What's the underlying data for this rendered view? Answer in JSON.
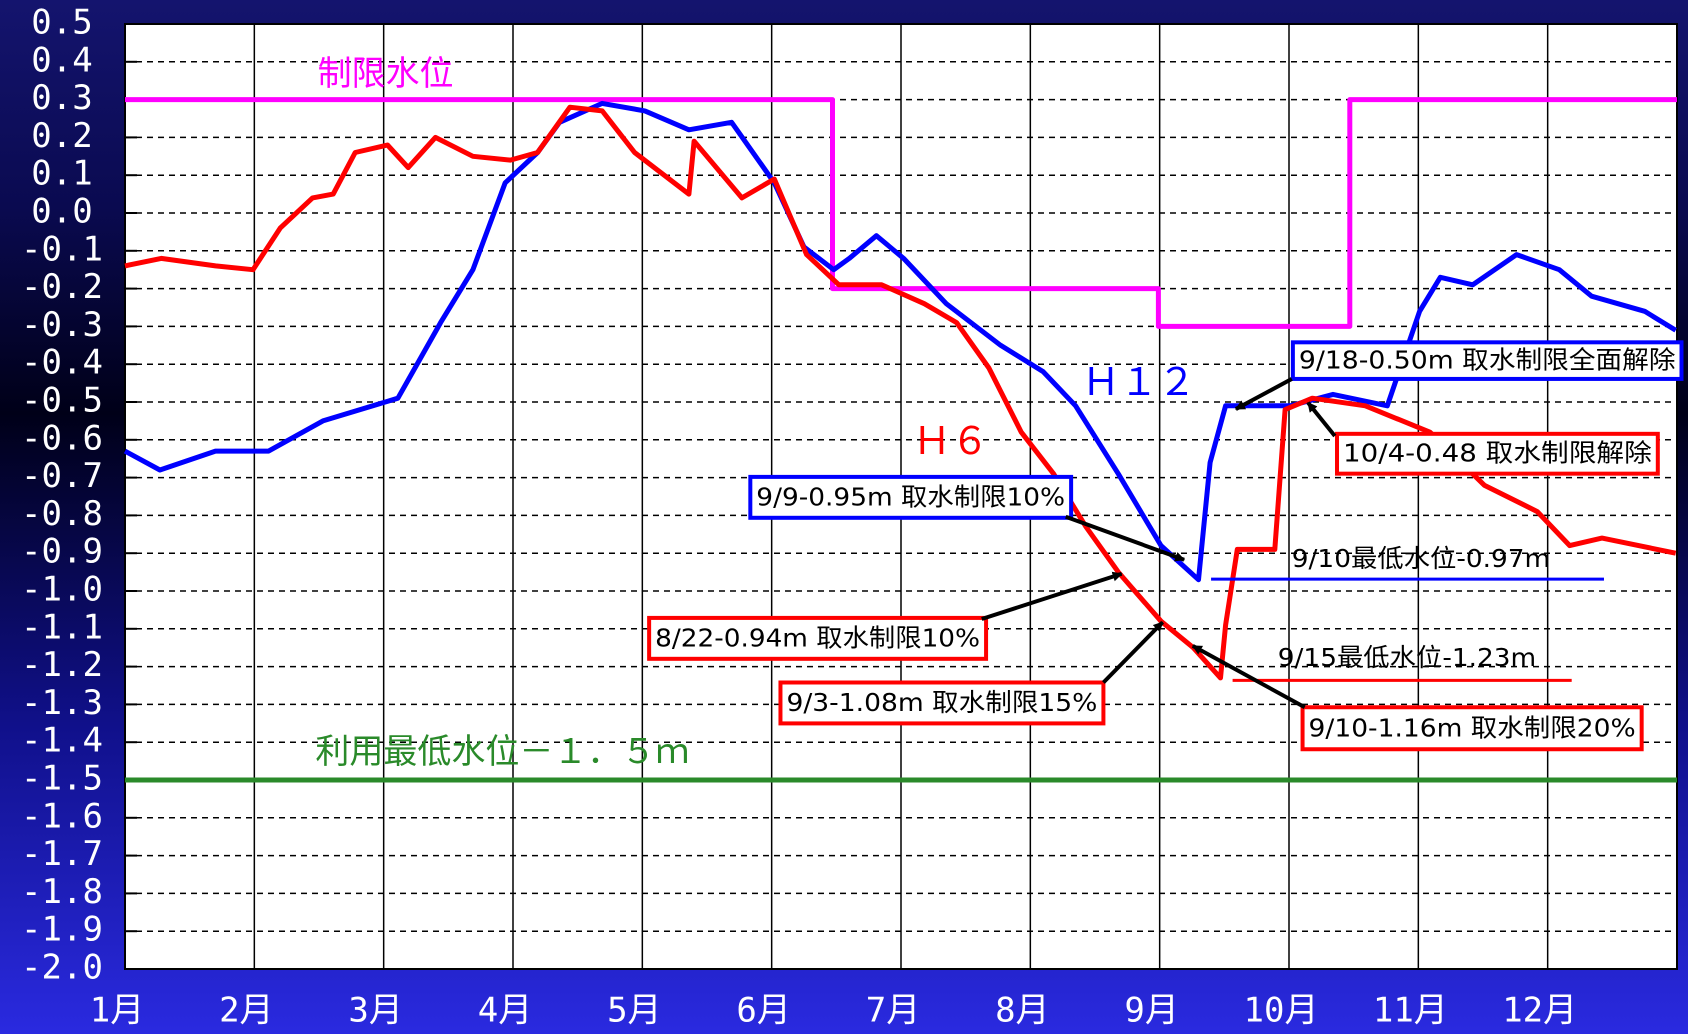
{
  "chart_data": {
    "type": "line",
    "xlim": [
      1,
      13
    ],
    "xticks": [
      {
        "value": 1,
        "label": "1月"
      },
      {
        "value": 2,
        "label": "2月"
      },
      {
        "value": 3,
        "label": "3月"
      },
      {
        "value": 4,
        "label": "4月"
      },
      {
        "value": 5,
        "label": "5月"
      },
      {
        "value": 6,
        "label": "6月"
      },
      {
        "value": 7,
        "label": "7月"
      },
      {
        "value": 8,
        "label": "8月"
      },
      {
        "value": 9,
        "label": "9月"
      },
      {
        "value": 10,
        "label": "10月"
      },
      {
        "value": 11,
        "label": "11月"
      },
      {
        "value": 12,
        "label": "12月"
      }
    ],
    "ylim": [
      -2.0,
      0.5
    ],
    "yticks": [
      0.5,
      0.4,
      0.3,
      0.2,
      0.1,
      {
        "value": 0,
        "label": "0.0"
      },
      -0.1,
      -0.2,
      -0.3,
      -0.4,
      -0.5,
      -0.6,
      -0.7,
      -0.8,
      -0.9,
      {
        "value": -1,
        "label": "-1.0"
      },
      -1.1,
      -1.2,
      -1.3,
      -1.4,
      -1.5,
      -1.6,
      -1.7,
      -1.8,
      -1.9,
      {
        "value": -2,
        "label": "-2.0"
      }
    ],
    "grid": true,
    "series": [
      {
        "name": "制限水位",
        "color": "#ff00ff",
        "x": [
          1,
          6.47,
          6.47,
          8.99,
          8.99,
          10.47,
          10.47,
          13
        ],
        "values": [
          0.3,
          0.3,
          -0.2,
          -0.2,
          -0.3,
          -0.3,
          0.3,
          0.3
        ]
      },
      {
        "name": "利用最低水位－１．５ｍ",
        "color": "#2a8a2a",
        "x": [
          1,
          13
        ],
        "values": [
          -1.5,
          -1.5
        ]
      },
      {
        "name": "Ｈ１２",
        "color": "#0000ff",
        "x": [
          1.0,
          1.27,
          1.7,
          2.11,
          2.53,
          3.11,
          3.44,
          3.69,
          3.94,
          4.19,
          4.36,
          4.69,
          5.02,
          5.36,
          5.69,
          6.02,
          6.25,
          6.48,
          6.6,
          6.81,
          7.02,
          7.35,
          7.77,
          8.1,
          8.35,
          8.68,
          9.01,
          9.3,
          9.39,
          9.51,
          9.76,
          10.01,
          10.34,
          10.76,
          11.01,
          11.17,
          11.42,
          11.76,
          12.09,
          12.34,
          12.75,
          12.99
        ],
        "values": [
          -0.63,
          -0.68,
          -0.63,
          -0.63,
          -0.55,
          -0.49,
          -0.29,
          -0.15,
          0.08,
          0.16,
          0.24,
          0.29,
          0.27,
          0.22,
          0.24,
          0.08,
          -0.09,
          -0.15,
          -0.12,
          -0.06,
          -0.12,
          -0.24,
          -0.35,
          -0.42,
          -0.51,
          -0.69,
          -0.88,
          -0.97,
          -0.66,
          -0.51,
          -0.51,
          -0.51,
          -0.48,
          -0.51,
          -0.26,
          -0.17,
          -0.19,
          -0.11,
          -0.15,
          -0.22,
          -0.26,
          -0.31
        ]
      },
      {
        "name": "Ｈ６",
        "color": "#ff0000",
        "x": [
          1.0,
          1.28,
          1.7,
          1.99,
          2.2,
          2.45,
          2.61,
          2.78,
          3.03,
          3.19,
          3.4,
          3.69,
          3.98,
          4.19,
          4.44,
          4.69,
          4.94,
          5.36,
          5.4,
          5.77,
          6.02,
          6.27,
          6.52,
          6.85,
          7.18,
          7.43,
          7.68,
          7.93,
          8.18,
          8.43,
          8.68,
          9.01,
          9.26,
          9.47,
          9.51,
          9.6,
          9.89,
          9.97,
          10.18,
          10.59,
          11.09,
          11.51,
          11.92,
          12.17,
          12.42,
          12.99
        ],
        "values": [
          -0.14,
          -0.12,
          -0.14,
          -0.15,
          -0.04,
          0.04,
          0.05,
          0.16,
          0.18,
          0.12,
          0.2,
          0.15,
          0.14,
          0.16,
          0.28,
          0.27,
          0.16,
          0.05,
          0.19,
          0.04,
          0.09,
          -0.11,
          -0.19,
          -0.19,
          -0.24,
          -0.29,
          -0.41,
          -0.58,
          -0.69,
          -0.83,
          -0.95,
          -1.08,
          -1.15,
          -1.23,
          -1.09,
          -0.89,
          -0.89,
          -0.52,
          -0.49,
          -0.51,
          -0.58,
          -0.72,
          -0.79,
          -0.88,
          -0.86,
          -0.9
        ]
      }
    ],
    "annotations": [
      "9/18-0.50m 取水制限全面解除",
      "10/4-0.48 取水制限解除",
      "9/9-0.95m 取水制限10%",
      "9/10最低水位-0.97m",
      "8/22-0.94m 取水制限10%",
      "9/15最低水位-1.23m",
      "9/3-1.08m 取水制限15%",
      "9/10-1.16m 取水制限20%"
    ]
  }
}
